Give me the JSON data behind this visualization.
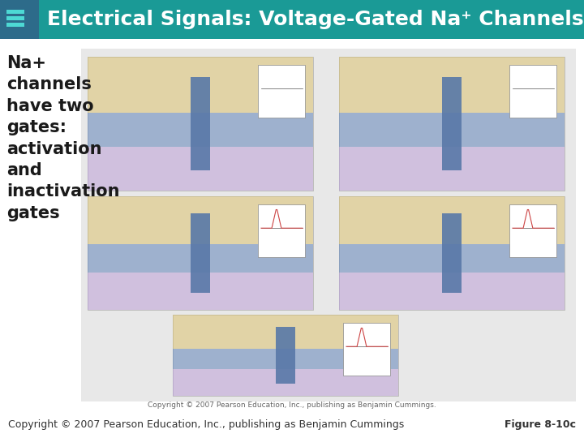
{
  "title": "Electrical Signals: Voltage-Gated Na⁺ Channels",
  "header_bg": "#1a9a96",
  "header_icon_bg": "#2d6b8a",
  "header_icon_lines": "#4dd9d4",
  "sidebar_text": "Na+\nchannels\nhave two\ngates:\nactivation\nand\ninactivation\ngates",
  "sidebar_text_color": "#1a1a1a",
  "body_bg": "#ffffff",
  "footer_left": "Copyright © 2007 Pearson Education, Inc., publishing as Benjamin Cummings",
  "footer_right": "Figure 8-10c",
  "footer_color": "#333333",
  "diagram_placeholder_color": "#e8e8e8",
  "title_fontsize": 18,
  "sidebar_fontsize": 15,
  "footer_fontsize": 9
}
